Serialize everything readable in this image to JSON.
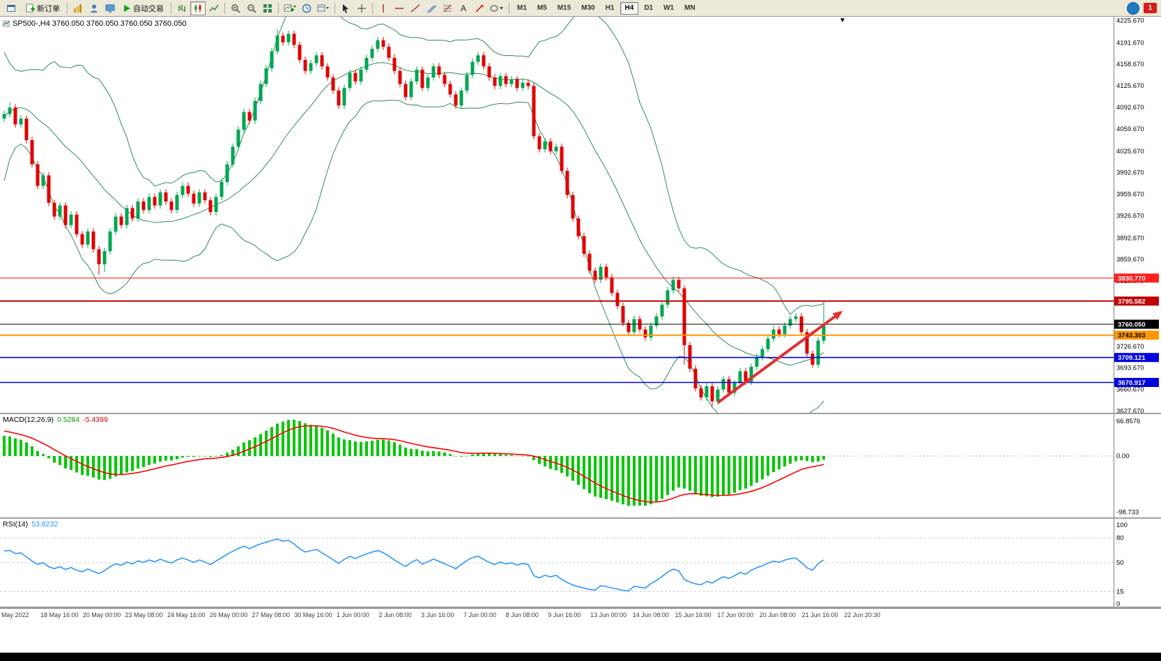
{
  "toolbar": {
    "new_order_label": "新订单",
    "auto_trading_label": "自动交易",
    "timeframes": [
      "M1",
      "M5",
      "M15",
      "M30",
      "H1",
      "H4",
      "D1",
      "W1",
      "MN"
    ],
    "active_timeframe": "H4",
    "notification_count": "1"
  },
  "chart": {
    "symbol_label": "SP500-,H4 3760.050 3760.050 3760.050 3760.050",
    "bar_marker": "▼"
  },
  "colors": {
    "bull": "#00a650",
    "bear": "#e00000",
    "band": "#2e8b57",
    "macd_hist": "#00c800",
    "macd_signal": "#ff0000",
    "rsi_line": "#1e90ff",
    "arrow": "#e03131",
    "axis_text": "#000000"
  },
  "chart_data": {
    "type": "candlestick",
    "symbol": "SP500-",
    "timeframe": "H4",
    "price_axis": {
      "min": 3627.67,
      "max": 4225.67,
      "labels": [
        "4225.670",
        "4191.670",
        "4158.670",
        "4125.670",
        "4092.670",
        "4059.670",
        "4025.670",
        "3992.670",
        "3959.670",
        "3926.670",
        "3892.670",
        "3859.670",
        "3826.670",
        "3793.670",
        "3760.670",
        "3726.670",
        "3693.670",
        "3660.670",
        "3627.670"
      ]
    },
    "price_tags": [
      {
        "label": "3830.770",
        "price": 3830.77,
        "bg": "#ff2020",
        "fg": "#ffffff"
      },
      {
        "label": "3795.582",
        "price": 3795.582,
        "bg": "#c00000",
        "fg": "#ffffff"
      },
      {
        "label": "3760.050",
        "price": 3760.05,
        "bg": "#000000",
        "fg": "#ffffff"
      },
      {
        "label": "3743.303",
        "price": 3743.303,
        "bg": "#ff9800",
        "fg": "#000000"
      },
      {
        "label": "3709.121",
        "price": 3709.121,
        "bg": "#0000e0",
        "fg": "#ffffff"
      },
      {
        "label": "3670.917",
        "price": 3670.917,
        "bg": "#0000e0",
        "fg": "#ffffff"
      }
    ],
    "hlines": [
      {
        "price": 3830.77,
        "color": "#ff2020",
        "width": 1.2
      },
      {
        "price": 3795.582,
        "color": "#c00000",
        "width": 2
      },
      {
        "price": 3760.05,
        "color": "#000000",
        "width": 1
      },
      {
        "price": 3743.303,
        "color": "#ff9800",
        "width": 2
      },
      {
        "price": 3709.121,
        "color": "#0000e0",
        "width": 1.6
      },
      {
        "price": 3670.917,
        "color": "#0000e0",
        "width": 1.6
      }
    ],
    "trend_arrow": {
      "from": {
        "index": 128,
        "price": 3640
      },
      "to": {
        "index": 150,
        "price": 3778
      }
    },
    "bollinger": {
      "period": 20,
      "deviation": 2
    },
    "warmup_closes": [
      3880,
      3935,
      3990,
      4040,
      4090,
      4130,
      4150,
      4120,
      4080,
      4110,
      4140,
      4110,
      4070,
      4040,
      4075,
      4110,
      4085,
      4055,
      4085,
      4070
    ],
    "ohlc": [
      [
        4075,
        4087,
        4070,
        4082
      ],
      [
        4082,
        4100,
        4077,
        4092
      ],
      [
        4092,
        4097,
        4061,
        4066
      ],
      [
        4066,
        4080,
        4061,
        4075
      ],
      [
        4075,
        4080,
        4037,
        4042
      ],
      [
        4042,
        4047,
        4000,
        4005
      ],
      [
        4005,
        4010,
        3967,
        3972
      ],
      [
        3972,
        3993,
        3967,
        3988
      ],
      [
        3988,
        3993,
        3941,
        3946
      ],
      [
        3946,
        3951,
        3920,
        3925
      ],
      [
        3925,
        3947,
        3920,
        3942
      ],
      [
        3942,
        3947,
        3907,
        3912
      ],
      [
        3912,
        3933,
        3907,
        3928
      ],
      [
        3928,
        3933,
        3893,
        3898
      ],
      [
        3898,
        3903,
        3877,
        3882
      ],
      [
        3882,
        3907,
        3877,
        3902
      ],
      [
        3902,
        3907,
        3870,
        3875
      ],
      [
        3875,
        3880,
        3836,
        3852
      ],
      [
        3852,
        3877,
        3840,
        3872
      ],
      [
        3872,
        3907,
        3867,
        3902
      ],
      [
        3902,
        3930,
        3897,
        3925
      ],
      [
        3925,
        3930,
        3907,
        3912
      ],
      [
        3912,
        3943,
        3907,
        3938
      ],
      [
        3938,
        3943,
        3917,
        3922
      ],
      [
        3922,
        3953,
        3917,
        3948
      ],
      [
        3948,
        3953,
        3930,
        3935
      ],
      [
        3935,
        3960,
        3930,
        3955
      ],
      [
        3955,
        3960,
        3937,
        3942
      ],
      [
        3942,
        3967,
        3937,
        3962
      ],
      [
        3962,
        3967,
        3943,
        3948
      ],
      [
        3948,
        3953,
        3930,
        3935
      ],
      [
        3935,
        3963,
        3930,
        3958
      ],
      [
        3958,
        3977,
        3953,
        3972
      ],
      [
        3972,
        3977,
        3955,
        3960
      ],
      [
        3960,
        3965,
        3940,
        3945
      ],
      [
        3945,
        3967,
        3940,
        3962
      ],
      [
        3962,
        3967,
        3945,
        3950
      ],
      [
        3950,
        3955,
        3927,
        3932
      ],
      [
        3932,
        3960,
        3927,
        3955
      ],
      [
        3955,
        3983,
        3950,
        3978
      ],
      [
        3978,
        4010,
        3973,
        4005
      ],
      [
        4005,
        4037,
        4000,
        4032
      ],
      [
        4032,
        4063,
        4027,
        4058
      ],
      [
        4058,
        4090,
        4053,
        4085
      ],
      [
        4085,
        4090,
        4067,
        4072
      ],
      [
        4072,
        4107,
        4067,
        4102
      ],
      [
        4102,
        4133,
        4097,
        4128
      ],
      [
        4128,
        4157,
        4123,
        4152
      ],
      [
        4152,
        4183,
        4147,
        4178
      ],
      [
        4178,
        4212,
        4173,
        4202
      ],
      [
        4202,
        4207,
        4187,
        4192
      ],
      [
        4192,
        4210,
        4187,
        4205
      ],
      [
        4205,
        4210,
        4183,
        4188
      ],
      [
        4188,
        4193,
        4160,
        4165
      ],
      [
        4165,
        4170,
        4143,
        4148
      ],
      [
        4148,
        4165,
        4143,
        4160
      ],
      [
        4160,
        4177,
        4155,
        4172
      ],
      [
        4172,
        4177,
        4150,
        4155
      ],
      [
        4155,
        4160,
        4133,
        4138
      ],
      [
        4138,
        4143,
        4113,
        4118
      ],
      [
        4118,
        4123,
        4090,
        4095
      ],
      [
        4095,
        4127,
        4090,
        4122
      ],
      [
        4122,
        4150,
        4117,
        4145
      ],
      [
        4145,
        4150,
        4127,
        4132
      ],
      [
        4132,
        4155,
        4127,
        4150
      ],
      [
        4150,
        4173,
        4145,
        4168
      ],
      [
        4168,
        4187,
        4163,
        4182
      ],
      [
        4182,
        4200,
        4177,
        4195
      ],
      [
        4195,
        4200,
        4180,
        4185
      ],
      [
        4185,
        4190,
        4163,
        4168
      ],
      [
        4168,
        4173,
        4143,
        4148
      ],
      [
        4148,
        4153,
        4123,
        4128
      ],
      [
        4128,
        4133,
        4103,
        4108
      ],
      [
        4108,
        4137,
        4103,
        4132
      ],
      [
        4132,
        4155,
        4127,
        4150
      ],
      [
        4150,
        4155,
        4117,
        4122
      ],
      [
        4122,
        4143,
        4117,
        4138
      ],
      [
        4138,
        4160,
        4133,
        4155
      ],
      [
        4155,
        4160,
        4137,
        4142
      ],
      [
        4142,
        4147,
        4123,
        4128
      ],
      [
        4128,
        4133,
        4107,
        4112
      ],
      [
        4112,
        4117,
        4090,
        4095
      ],
      [
        4095,
        4123,
        4090,
        4118
      ],
      [
        4118,
        4147,
        4113,
        4142
      ],
      [
        4142,
        4167,
        4137,
        4162
      ],
      [
        4162,
        4177,
        4157,
        4172
      ],
      [
        4172,
        4177,
        4150,
        4155
      ],
      [
        4155,
        4160,
        4133,
        4138
      ],
      [
        4138,
        4143,
        4120,
        4125
      ],
      [
        4125,
        4145,
        4120,
        4140
      ],
      [
        4140,
        4145,
        4123,
        4128
      ],
      [
        4128,
        4140,
        4123,
        4135
      ],
      [
        4135,
        4140,
        4117,
        4122
      ],
      [
        4122,
        4135,
        4117,
        4130
      ],
      [
        4130,
        4135,
        4120,
        4125
      ],
      [
        4125,
        4130,
        4043,
        4048
      ],
      [
        4048,
        4053,
        4023,
        4028
      ],
      [
        4028,
        4045,
        4023,
        4040
      ],
      [
        4040,
        4045,
        4020,
        4025
      ],
      [
        4025,
        4037,
        4020,
        4032
      ],
      [
        4032,
        4037,
        3990,
        3995
      ],
      [
        3995,
        4000,
        3953,
        3958
      ],
      [
        3958,
        3963,
        3917,
        3922
      ],
      [
        3922,
        3927,
        3890,
        3895
      ],
      [
        3895,
        3900,
        3863,
        3868
      ],
      [
        3868,
        3873,
        3837,
        3842
      ],
      [
        3842,
        3847,
        3823,
        3828
      ],
      [
        3828,
        3853,
        3823,
        3848
      ],
      [
        3848,
        3853,
        3827,
        3832
      ],
      [
        3832,
        3837,
        3803,
        3808
      ],
      [
        3808,
        3813,
        3783,
        3788
      ],
      [
        3788,
        3793,
        3757,
        3762
      ],
      [
        3762,
        3767,
        3743,
        3748
      ],
      [
        3748,
        3773,
        3743,
        3768
      ],
      [
        3768,
        3773,
        3747,
        3752
      ],
      [
        3752,
        3757,
        3735,
        3740
      ],
      [
        3740,
        3763,
        3735,
        3758
      ],
      [
        3758,
        3777,
        3753,
        3772
      ],
      [
        3772,
        3795,
        3767,
        3790
      ],
      [
        3790,
        3817,
        3785,
        3812
      ],
      [
        3812,
        3833,
        3807,
        3828
      ],
      [
        3828,
        3833,
        3810,
        3815
      ],
      [
        3815,
        3820,
        3698,
        3728
      ],
      [
        3728,
        3733,
        3687,
        3692
      ],
      [
        3692,
        3697,
        3657,
        3662
      ],
      [
        3662,
        3667,
        3643,
        3648
      ],
      [
        3648,
        3670,
        3643,
        3665
      ],
      [
        3665,
        3670,
        3634,
        3642
      ],
      [
        3642,
        3665,
        3637,
        3660
      ],
      [
        3660,
        3681,
        3655,
        3676
      ],
      [
        3676,
        3681,
        3650,
        3655
      ],
      [
        3655,
        3675,
        3650,
        3670
      ],
      [
        3670,
        3693,
        3665,
        3688
      ],
      [
        3688,
        3693,
        3667,
        3672
      ],
      [
        3672,
        3700,
        3667,
        3695
      ],
      [
        3695,
        3715,
        3690,
        3710
      ],
      [
        3710,
        3727,
        3705,
        3722
      ],
      [
        3722,
        3743,
        3717,
        3738
      ],
      [
        3738,
        3757,
        3733,
        3752
      ],
      [
        3752,
        3757,
        3740,
        3745
      ],
      [
        3745,
        3763,
        3740,
        3758
      ],
      [
        3758,
        3773,
        3753,
        3768
      ],
      [
        3768,
        3777,
        3763,
        3772
      ],
      [
        3772,
        3777,
        3743,
        3748
      ],
      [
        3748,
        3753,
        3710,
        3715
      ],
      [
        3715,
        3720,
        3693,
        3698
      ],
      [
        3698,
        3740,
        3693,
        3735
      ],
      [
        3735,
        3796,
        3730,
        3760
      ]
    ],
    "indicators": [
      {
        "label": "MACD(12,26,9)",
        "value_main": "0.5284",
        "value_signal": "-5.4399",
        "axis": [
          "66.8576",
          "0.00",
          "-98.733"
        ],
        "axis_values": [
          66.8576,
          0,
          -98.733
        ]
      },
      {
        "label": "RSI(14)",
        "value": "53.8232",
        "axis": [
          "100",
          "80",
          "50",
          "15",
          "0"
        ],
        "axis_values": [
          100,
          80,
          50,
          15,
          0
        ],
        "levels": [
          80,
          50,
          15
        ]
      }
    ],
    "time_axis": [
      "May 2022",
      "18 May 16:00",
      "20 May 00:00",
      "23 May 08:00",
      "24 May 16:00",
      "26 May 00:00",
      "27 May 08:00",
      "30 May 16:00",
      "1 Jun 00:00",
      "2 Jun 08:00",
      "3 Jun 16:00",
      "7 Jun 00:00",
      "8 Jun 08:00",
      "9 Jun 16:00",
      "13 Jun 00:00",
      "14 Jun 08:00",
      "15 Jun 16:00",
      "17 Jun 00:00",
      "20 Jun 08:00",
      "21 Jun 16:00",
      "22 Jun 20:30"
    ]
  }
}
